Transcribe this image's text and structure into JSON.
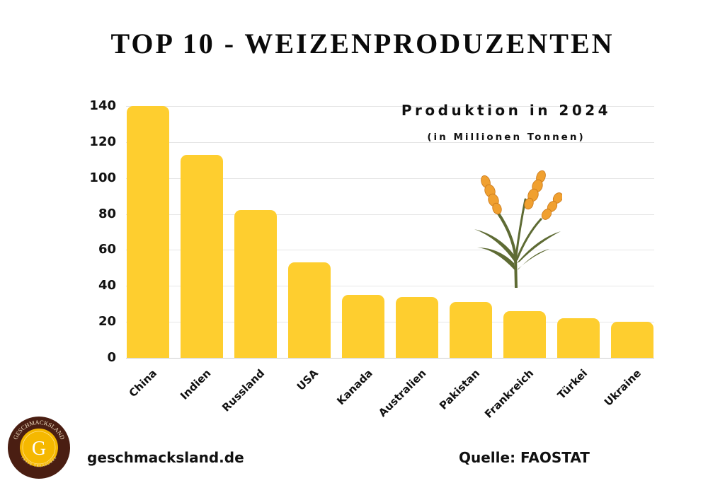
{
  "header": {
    "title": "TOP 10 - WEIZENPRODUZENTEN"
  },
  "chart_annotation": {
    "subtitle": "Produktion in 2024",
    "unit": "(in Millionen Tonnen)",
    "illustration": "wheat-icon"
  },
  "footer": {
    "logo_text_top": "GESCHMACKSLAND",
    "logo_letter": "G",
    "logo_text_bottom": "TASTE TREASURES",
    "website": "geschmacksland.de",
    "source": "Quelle: FAOSTAT"
  },
  "colors": {
    "bar": "#FECE2F",
    "grid": "#E6E6E6",
    "text": "#111111",
    "logo_ring": "#4A1E12",
    "logo_center": "#F5B800",
    "wheat_grain": "#F0A030",
    "wheat_stem": "#5E6B34"
  },
  "y_ticks": [
    "0",
    "20",
    "40",
    "60",
    "80",
    "100",
    "120",
    "140"
  ],
  "chart_data": {
    "type": "bar",
    "title": "TOP 10 - WEIZENPRODUZENTEN",
    "subtitle": "Produktion in 2024 (in Millionen Tonnen)",
    "categories": [
      "China",
      "Indien",
      "Russland",
      "USA",
      "Kanada",
      "Australien",
      "Pakistan",
      "Frankreich",
      "Türkei",
      "Ukraine"
    ],
    "values": [
      140,
      113,
      82,
      53,
      35,
      34,
      31,
      26,
      22,
      20
    ],
    "xlabel": "",
    "ylabel": "Millionen Tonnen",
    "ylim": [
      0,
      140
    ],
    "yticks": [
      0,
      20,
      40,
      60,
      80,
      100,
      120,
      140
    ],
    "grid": true,
    "legend": null,
    "source": "FAOSTAT"
  }
}
